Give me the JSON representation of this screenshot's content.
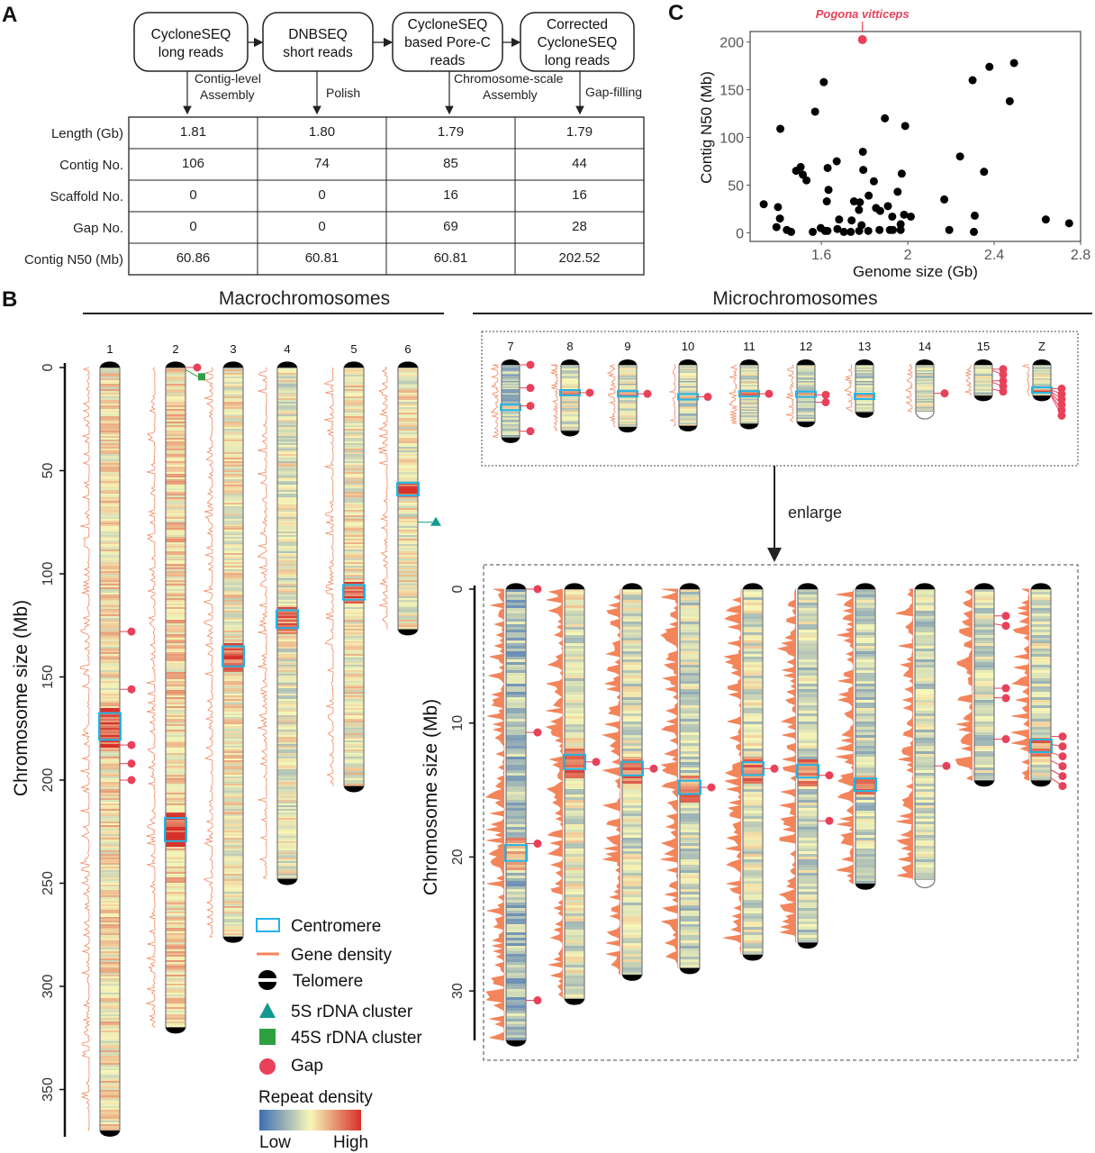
{
  "panel_labels": {
    "a": "A",
    "b": "B",
    "c": "C"
  },
  "pipeline": {
    "steps": [
      {
        "label_lines": [
          "CycloneSEQ",
          "long reads"
        ],
        "process_lines": [
          "Contig-level",
          "Assembly"
        ]
      },
      {
        "label_lines": [
          "DNBSEQ",
          "short reads"
        ],
        "process_lines": [
          "Polish"
        ]
      },
      {
        "label_lines": [
          "CycloneSEQ",
          "based Pore-C",
          "reads"
        ],
        "process_lines": [
          "Chromosome-scale",
          "Assembly"
        ]
      },
      {
        "label_lines": [
          "Corrected",
          "CycloneSEQ",
          "long reads"
        ],
        "process_lines": [
          "Gap-filling"
        ]
      }
    ]
  },
  "stats_table": {
    "rows": [
      {
        "label": "Length (Gb)",
        "values": [
          "1.81",
          "1.80",
          "1.79",
          "1.79"
        ]
      },
      {
        "label": "Contig No.",
        "values": [
          "106",
          "74",
          "85",
          "44"
        ]
      },
      {
        "label": "Scaffold No.",
        "values": [
          "0",
          "0",
          "16",
          "16"
        ]
      },
      {
        "label": "Gap No.",
        "values": [
          "0",
          "0",
          "69",
          "28"
        ]
      },
      {
        "label": "Contig N50 (Mb)",
        "values": [
          "60.86",
          "60.81",
          "60.81",
          "202.52"
        ]
      }
    ]
  },
  "chart_data": {
    "type": "scatter",
    "xlabel": "Genome size (Gb)",
    "ylabel": "Contig N50 (Mb)",
    "xlim": [
      1.27,
      2.8
    ],
    "ylim": [
      -9,
      211
    ],
    "xticks": [
      1.6,
      2.0,
      2.4,
      2.8
    ],
    "yticks": [
      0,
      50,
      100,
      150,
      200
    ],
    "grid": false,
    "highlight": {
      "label": "Pogona vitticeps",
      "x": 1.79,
      "y": 202.52,
      "color": "#e8415a"
    },
    "points": [
      [
        1.333,
        30
      ],
      [
        1.399,
        27
      ],
      [
        1.392,
        6
      ],
      [
        1.408,
        15
      ],
      [
        1.41,
        109
      ],
      [
        1.44,
        3
      ],
      [
        1.46,
        1
      ],
      [
        1.483,
        65
      ],
      [
        1.504,
        69
      ],
      [
        1.514,
        61
      ],
      [
        1.531,
        55
      ],
      [
        1.571,
        127
      ],
      [
        1.56,
        1
      ],
      [
        1.597,
        5
      ],
      [
        1.611,
        158
      ],
      [
        1.617,
        2
      ],
      [
        1.628,
        2
      ],
      [
        1.625,
        33
      ],
      [
        1.629,
        68
      ],
      [
        1.633,
        45
      ],
      [
        1.671,
        75
      ],
      [
        1.674,
        4
      ],
      [
        1.682,
        14
      ],
      [
        1.704,
        1
      ],
      [
        1.736,
        1
      ],
      [
        1.74,
        13
      ],
      [
        1.751,
        33
      ],
      [
        1.774,
        24
      ],
      [
        1.778,
        32
      ],
      [
        1.775,
        2
      ],
      [
        1.786,
        8
      ],
      [
        1.792,
        85
      ],
      [
        1.794,
        66
      ],
      [
        1.817,
        2
      ],
      [
        1.819,
        39
      ],
      [
        1.843,
        54
      ],
      [
        1.853,
        26
      ],
      [
        1.872,
        23
      ],
      [
        1.869,
        3
      ],
      [
        1.894,
        120
      ],
      [
        1.908,
        28
      ],
      [
        1.917,
        3
      ],
      [
        1.928,
        17
      ],
      [
        1.931,
        3
      ],
      [
        1.953,
        43
      ],
      [
        1.967,
        9
      ],
      [
        1.967,
        3
      ],
      [
        1.972,
        62
      ],
      [
        1.983,
        19
      ],
      [
        1.988,
        112
      ],
      [
        2.014,
        17
      ],
      [
        2.169,
        35
      ],
      [
        2.192,
        3
      ],
      [
        2.242,
        80
      ],
      [
        2.3,
        160
      ],
      [
        2.31,
        18
      ],
      [
        2.306,
        1
      ],
      [
        2.353,
        64
      ],
      [
        2.378,
        174
      ],
      [
        2.472,
        138
      ],
      [
        2.492,
        178
      ],
      [
        2.639,
        14
      ],
      [
        2.747,
        10
      ]
    ]
  },
  "karyotype": {
    "macro_title": "Macrochromosomes",
    "micro_title": "Microchromosomes",
    "axis_label": "Chromosome size (Mb)",
    "macro_ticks": [
      0,
      50,
      100,
      150,
      200,
      250,
      300,
      350
    ],
    "micro_ticks": [
      0,
      10,
      20,
      30
    ],
    "enlarge_label": "enlarge",
    "macro": [
      {
        "name": "1",
        "length": 370,
        "centromere": 174,
        "gaps": [
          128,
          156,
          183,
          192,
          200
        ],
        "repeat": 0.55
      },
      {
        "name": "2",
        "length": 320,
        "centromere": 224,
        "gaps": [
          0
        ],
        "rdna45s": [
          1
        ],
        "repeat": 0.58
      },
      {
        "name": "3",
        "length": 276,
        "centromere": 140,
        "gaps": [],
        "repeat": 0.52
      },
      {
        "name": "4",
        "length": 248,
        "centromere": 122,
        "gaps": [],
        "repeat": 0.47
      },
      {
        "name": "5",
        "length": 203,
        "centromere": 109,
        "gaps": [],
        "repeat": 0.52
      },
      {
        "name": "6",
        "length": 127,
        "centromere": 59,
        "gaps": [],
        "rdna5s": [
          75
        ],
        "repeat": 0.5
      }
    ],
    "micro": [
      {
        "name": "7",
        "length": 33.7,
        "centromere": 19.7,
        "gaps": [
          0,
          10.7,
          19,
          30.7
        ],
        "repeat": 0.3
      },
      {
        "name": "8",
        "length": 30.6,
        "centromere": 12.9,
        "gaps": [
          12.9
        ],
        "repeat": 0.45
      },
      {
        "name": "9",
        "length": 28.8,
        "centromere": 13.4,
        "gaps": [
          13.4
        ],
        "repeat": 0.43
      },
      {
        "name": "10",
        "length": 28.3,
        "centromere": 14.8,
        "gaps": [
          14.8
        ],
        "repeat": 0.4
      },
      {
        "name": "11",
        "length": 27.3,
        "centromere": 13.4,
        "gaps": [
          13.4
        ],
        "repeat": 0.44
      },
      {
        "name": "12",
        "length": 26.4,
        "centromere": 13.6,
        "gaps": [
          13.9,
          17.3
        ],
        "repeat": 0.4
      },
      {
        "name": "13",
        "length": 22,
        "centromere": 14.6,
        "gaps": [],
        "repeat": 0.38
      },
      {
        "name": "14",
        "length": 21.7,
        "gaps": [
          13.2
        ],
        "open_end": true,
        "repeat": 0.4
      },
      {
        "name": "15",
        "length": 14.3,
        "gaps": [
          2,
          2.6,
          7.4,
          8.1,
          11.2
        ],
        "repeat": 0.4
      },
      {
        "name": "Z",
        "length": 14.3,
        "centromere": 11.7,
        "gaps": [
          11,
          11.6,
          12.2,
          12.8,
          13.5,
          14.1
        ],
        "repeat": 0.42
      }
    ]
  },
  "legend": {
    "items": [
      {
        "icon": "centromere-box",
        "label": "Centromere"
      },
      {
        "icon": "gene-density-line",
        "label": "Gene density"
      },
      {
        "icon": "telomere-caps",
        "label": "Telomere"
      },
      {
        "icon": "triangle",
        "label": "5S rDNA cluster"
      },
      {
        "icon": "square",
        "label": "45S rDNA cluster"
      },
      {
        "icon": "circle",
        "label": "Gap"
      }
    ],
    "repeat_title": "Repeat density",
    "low": "Low",
    "high": "High"
  },
  "colors": {
    "gap": "#e8415a",
    "centromere": "#22b5e6",
    "gene": "#f4845a",
    "rdna5s": "#13998f",
    "rdna45s": "#2ea043",
    "repeat_low": "#3d6db5",
    "repeat_mid": "#f7f6b8",
    "repeat_high": "#d7302b"
  }
}
